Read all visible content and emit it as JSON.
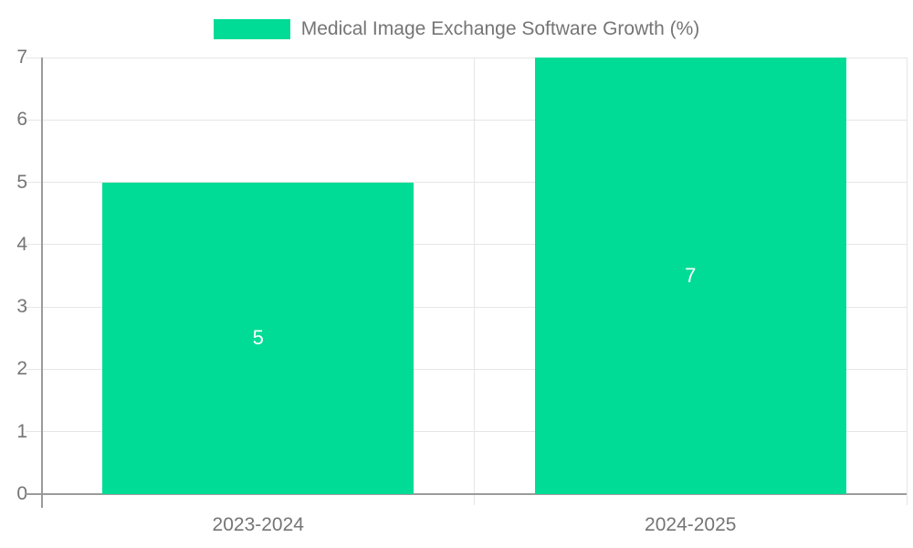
{
  "chart_data": {
    "type": "bar",
    "title": "Medical Image Exchange Software Growth (%)",
    "categories": [
      "2023-2024",
      "2024-2025"
    ],
    "series": [
      {
        "name": "Medical Image Exchange Software Growth (%)",
        "values": [
          5,
          7
        ]
      }
    ],
    "data_labels": [
      "5",
      "7"
    ],
    "xlabel": "",
    "ylabel": "",
    "ylim": [
      0,
      7
    ],
    "yticks": [
      "0",
      "1",
      "2",
      "3",
      "4",
      "5",
      "6",
      "7"
    ],
    "grid": true,
    "legend_position": "top-center",
    "colors": {
      "bar": "#00DC95",
      "gridline": "#e6e6e6",
      "axis": "#9b9b9b",
      "tick_text": "#757575",
      "title_text": "#757575",
      "bar_label_text": "#ffffff",
      "background": "#ffffff"
    }
  }
}
